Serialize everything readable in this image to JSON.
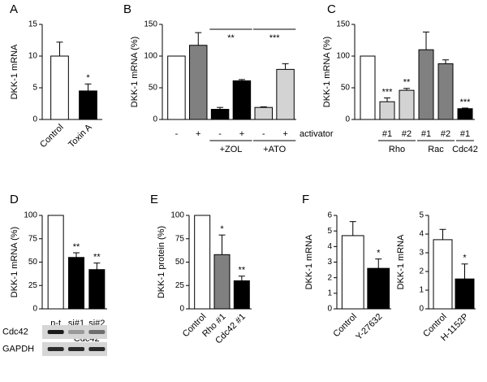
{
  "chart_data": [
    {
      "type": "bar",
      "panel": "A",
      "y_label": "DKK-1 mRNA",
      "ylim": [
        0,
        15
      ],
      "yticks": [
        0,
        5,
        10,
        15
      ],
      "groups": [
        {
          "bars": [
            {
              "category": "Control",
              "value": 10,
              "error": 2.2,
              "color": "#ffffff"
            },
            {
              "category": "Toxin A",
              "value": 4.5,
              "error": 1.1,
              "color": "#000000",
              "significance": "*"
            }
          ]
        }
      ]
    },
    {
      "type": "bar",
      "panel": "B",
      "y_label": "DKK-1 mRNA (%)",
      "ylim": [
        0,
        150
      ],
      "yticks": [
        0,
        50,
        100,
        150
      ],
      "x_note": "activator",
      "groups": [
        {
          "bars": [
            {
              "category": "-",
              "value": 100,
              "color": "#ffffff"
            },
            {
              "category": "+",
              "value": 117,
              "error": 20,
              "color": "#808080"
            }
          ]
        },
        {
          "name": "+ZOL",
          "significance": "**",
          "bars": [
            {
              "category": "-",
              "value": 16,
              "error": 3,
              "color": "#000000"
            },
            {
              "category": "+",
              "value": 61,
              "error": 2,
              "color": "#000000"
            }
          ]
        },
        {
          "name": "+ATO",
          "significance": "***",
          "bars": [
            {
              "category": "-",
              "value": 19,
              "error": 1,
              "color": "#d3d3d3"
            },
            {
              "category": "+",
              "value": 79,
              "error": 9,
              "color": "#d3d3d3"
            }
          ]
        }
      ]
    },
    {
      "type": "bar",
      "panel": "C",
      "y_label": "DKK-1 mRNA (%)",
      "ylim": [
        0,
        150
      ],
      "yticks": [
        0,
        50,
        100,
        150
      ],
      "groups": [
        {
          "bars": [
            {
              "value": 100,
              "color": "#ffffff"
            }
          ]
        },
        {
          "name": "Rho",
          "bars": [
            {
              "category": "#1",
              "value": 28,
              "error": 6,
              "color": "#d3d3d3",
              "significance": "***"
            },
            {
              "category": "#2",
              "value": 46,
              "error": 3,
              "color": "#d3d3d3",
              "significance": "**"
            }
          ]
        },
        {
          "name": "Rac",
          "bars": [
            {
              "category": "#1",
              "value": 110,
              "error": 28,
              "color": "#808080"
            },
            {
              "category": "#2",
              "value": 88,
              "error": 6,
              "color": "#808080"
            }
          ]
        },
        {
          "name": "Cdc42",
          "bars": [
            {
              "category": "#1",
              "value": 17,
              "error": 1,
              "color": "#000000",
              "significance": "***"
            }
          ]
        }
      ]
    },
    {
      "type": "bar",
      "panel": "D",
      "y_label": "DKK-1 mRNA (%)",
      "ylim": [
        0,
        100
      ],
      "yticks": [
        0,
        25,
        50,
        75,
        100
      ],
      "blot": {
        "rows": [
          "Cdc42",
          "GAPDH"
        ]
      },
      "groups": [
        {
          "bars": [
            {
              "category": "n-t",
              "value": 100,
              "color": "#ffffff"
            }
          ]
        },
        {
          "name": "Cdc42",
          "bars": [
            {
              "category": "si#1",
              "value": 55,
              "error": 5,
              "color": "#000000",
              "significance": "**"
            },
            {
              "category": "si#2",
              "value": 42,
              "error": 7,
              "color": "#000000",
              "significance": "**"
            }
          ]
        }
      ]
    },
    {
      "type": "bar",
      "panel": "E",
      "y_label": "DKK-1 protein (%)",
      "ylim": [
        0,
        100
      ],
      "yticks": [
        0,
        25,
        50,
        75,
        100
      ],
      "groups": [
        {
          "bars": [
            {
              "category": "Control",
              "value": 100,
              "color": "#ffffff"
            },
            {
              "category": "Rho #1",
              "value": 58,
              "error": 21,
              "color": "#808080",
              "significance": "*"
            },
            {
              "category": "Cdc42 #1",
              "value": 30,
              "error": 5,
              "color": "#000000",
              "significance": "**"
            }
          ]
        }
      ]
    },
    {
      "type": "bar",
      "panel": "F",
      "y_label": "DKK-1 mRNA",
      "ylim": [
        0,
        6
      ],
      "yticks": [
        0,
        1,
        2,
        3,
        4,
        5,
        6
      ],
      "groups": [
        {
          "bars": [
            {
              "category": "Control",
              "value": 4.7,
              "error": 0.9,
              "color": "#ffffff"
            },
            {
              "category": "Y-27632",
              "value": 2.6,
              "error": 0.6,
              "color": "#000000",
              "significance": "*"
            }
          ]
        }
      ]
    },
    {
      "type": "bar",
      "y_label": "DKK-1 mRNA",
      "ylim": [
        0,
        5
      ],
      "yticks": [
        0,
        1,
        2,
        3,
        4,
        5
      ],
      "groups": [
        {
          "bars": [
            {
              "category": "Control",
              "value": 3.7,
              "error": 0.55,
              "color": "#ffffff"
            },
            {
              "category": "H-1152P",
              "value": 1.6,
              "error": 0.8,
              "color": "#000000",
              "significance": "*"
            }
          ]
        }
      ]
    }
  ]
}
